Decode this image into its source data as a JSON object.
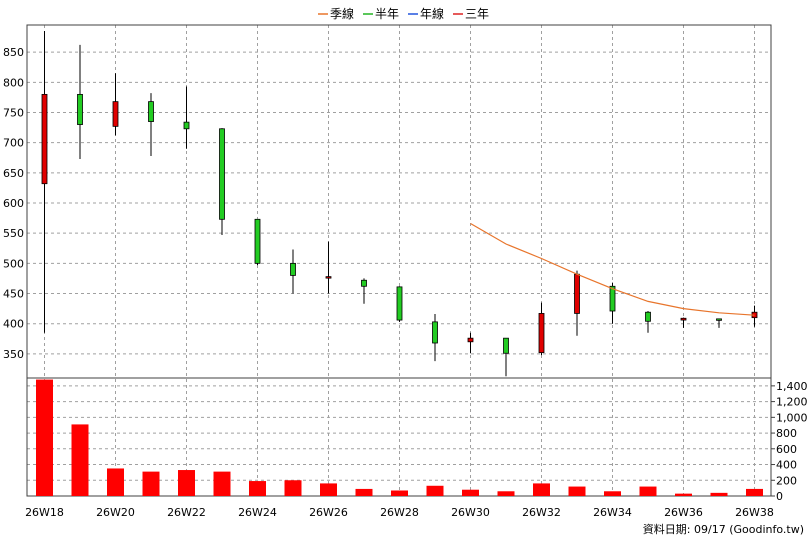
{
  "chart_data": {
    "type": "candlestick",
    "legend": {
      "placement": "top-center",
      "items": [
        {
          "name": "季線",
          "color": "#e8752c"
        },
        {
          "name": "半年",
          "color": "#22b422"
        },
        {
          "name": "年線",
          "color": "#2255dd"
        },
        {
          "name": "三年",
          "color": "#dd2222"
        }
      ]
    },
    "colors": {
      "up": "#e00000",
      "down": "#22cc22",
      "volume": "#ff0000",
      "ma": "#e8752c"
    },
    "grid": true,
    "x": [
      "26W18",
      "26W19",
      "26W20",
      "26W21",
      "26W22",
      "26W23",
      "26W24",
      "26W25",
      "26W26",
      "26W27",
      "26W28",
      "26W29",
      "26W30",
      "26W31",
      "26W32",
      "26W33",
      "26W34",
      "26W35",
      "26W36",
      "26W37",
      "26W38"
    ],
    "x_tick_labels": [
      "26W18",
      "26W20",
      "26W22",
      "26W24",
      "26W26",
      "26W28",
      "26W30",
      "26W32",
      "26W34",
      "26W36",
      "26W38"
    ],
    "price_axis": {
      "ylim": [
        310,
        895
      ],
      "ticks": [
        350,
        400,
        450,
        500,
        550,
        600,
        650,
        700,
        750,
        800,
        850
      ]
    },
    "volume_axis": {
      "ylim": [
        0,
        1500
      ],
      "ticks": [
        0,
        200,
        400,
        600,
        800,
        1000,
        1200,
        1400
      ],
      "tick_labels": [
        "0",
        "200",
        "400",
        "600",
        "800",
        "1,000",
        "1,200",
        "1,400"
      ]
    },
    "candles": [
      {
        "o": 632,
        "h": 885,
        "l": 385,
        "c": 780
      },
      {
        "o": 780,
        "h": 862,
        "l": 673,
        "c": 730
      },
      {
        "o": 727,
        "h": 815,
        "l": 712,
        "c": 768
      },
      {
        "o": 768,
        "h": 782,
        "l": 678,
        "c": 735
      },
      {
        "o": 734,
        "h": 793,
        "l": 690,
        "c": 723
      },
      {
        "o": 723,
        "h": 724,
        "l": 547,
        "c": 573
      },
      {
        "o": 573,
        "h": 573,
        "l": 497,
        "c": 500
      },
      {
        "o": 500,
        "h": 523,
        "l": 450,
        "c": 480
      },
      {
        "o": 476,
        "h": 536,
        "l": 450,
        "c": 478
      },
      {
        "o": 472,
        "h": 475,
        "l": 433,
        "c": 462
      },
      {
        "o": 461,
        "h": 462,
        "l": 403,
        "c": 406
      },
      {
        "o": 403,
        "h": 416,
        "l": 338,
        "c": 368
      },
      {
        "o": 370,
        "h": 385,
        "l": 351,
        "c": 376
      },
      {
        "o": 376,
        "h": 376,
        "l": 313,
        "c": 351
      },
      {
        "o": 352,
        "h": 435,
        "l": 348,
        "c": 417
      },
      {
        "o": 417,
        "h": 488,
        "l": 380,
        "c": 482
      },
      {
        "o": 462,
        "h": 468,
        "l": 400,
        "c": 421
      },
      {
        "o": 419,
        "h": 421,
        "l": 385,
        "c": 404
      },
      {
        "o": 406,
        "h": 410,
        "l": 393,
        "c": 409
      },
      {
        "o": 408,
        "h": 408,
        "l": 393,
        "c": 407
      },
      {
        "o": 410,
        "h": 430,
        "l": 395,
        "c": 419
      }
    ],
    "volume": [
      1480,
      910,
      350,
      310,
      330,
      310,
      190,
      200,
      160,
      90,
      70,
      130,
      80,
      60,
      160,
      120,
      60,
      120,
      30,
      40,
      90
    ],
    "ma_series": {
      "name": "季線",
      "start_index": 12,
      "values": [
        566,
        532,
        508,
        482,
        458,
        437,
        425,
        418,
        414
      ]
    },
    "footer_note": "資料日期: 09/17 (Goodinfo.tw)"
  }
}
